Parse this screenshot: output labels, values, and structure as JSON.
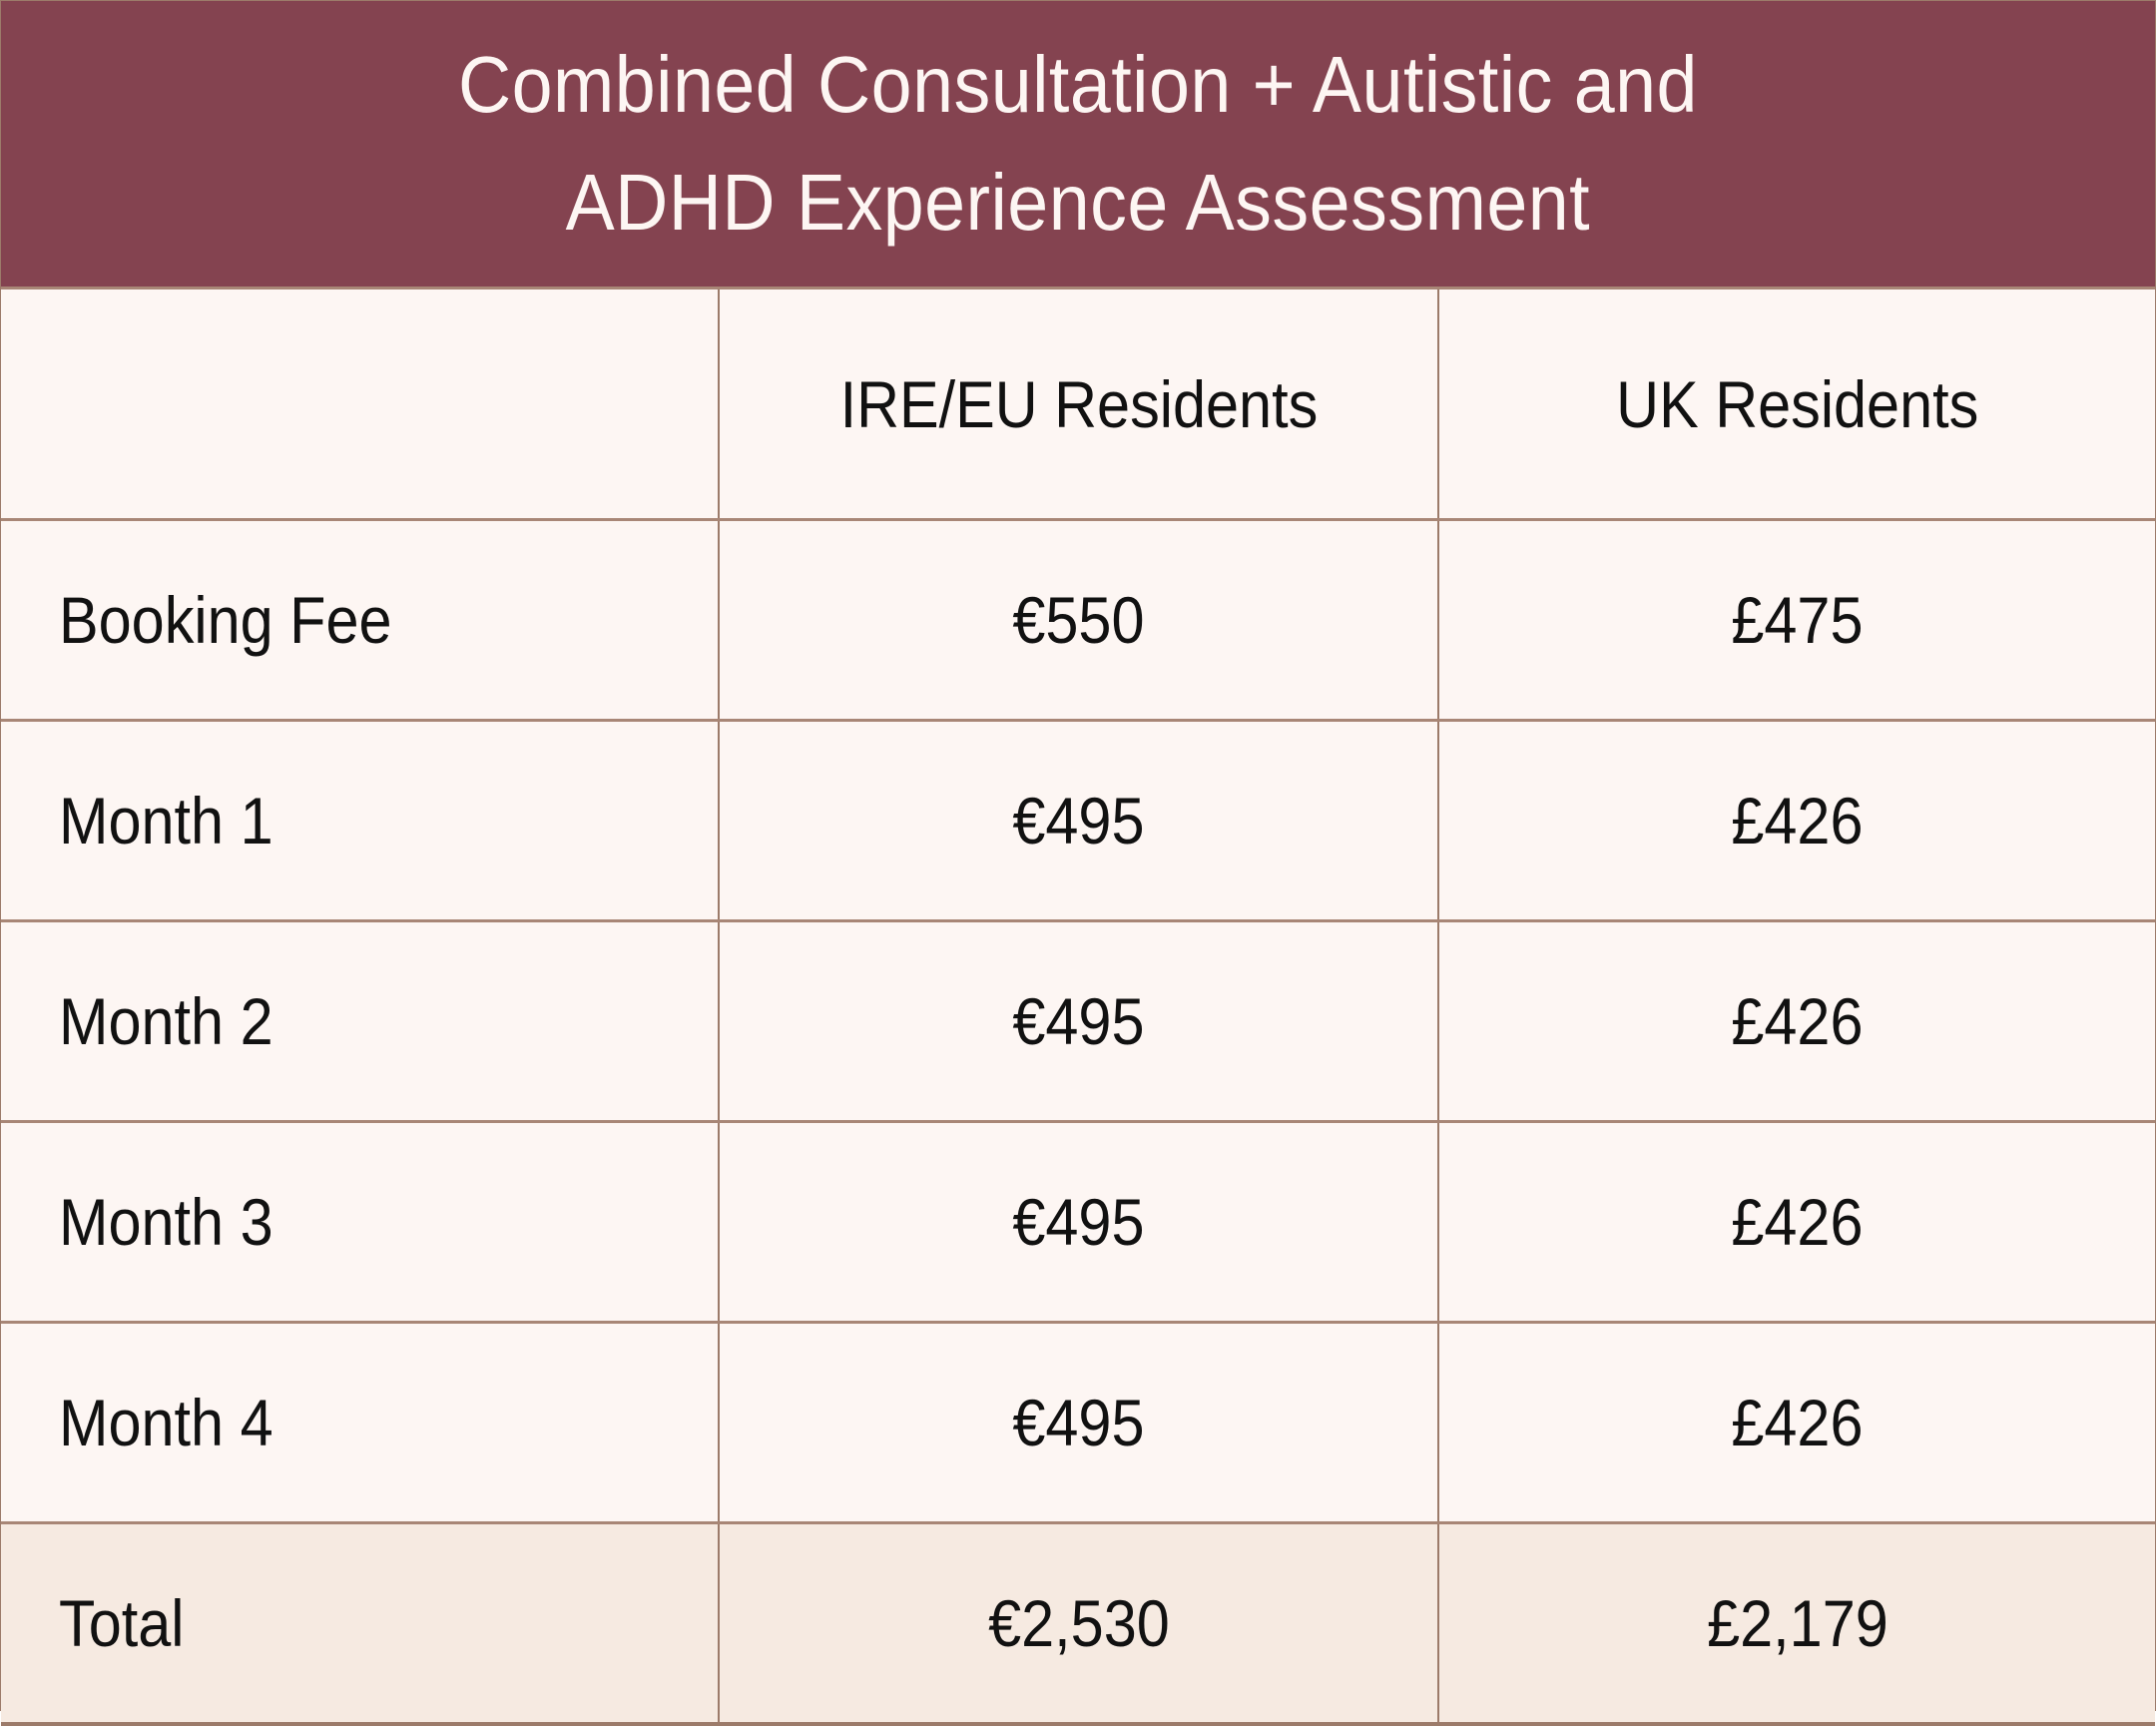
{
  "title": {
    "line1": "Combined Consultation + Autistic and",
    "line2": "ADHD Experience Assessment"
  },
  "colors": {
    "header_bg": "#844350",
    "body_bg": "#fdf6f3",
    "total_bg": "#f6eae1",
    "border": "#9c7b6a"
  },
  "table": {
    "columns": [
      "",
      "IRE/EU Residents",
      "UK Residents"
    ],
    "rows": [
      {
        "label": "Booking Fee",
        "eu": "€550",
        "uk": "£475"
      },
      {
        "label": "Month 1",
        "eu": "€495",
        "uk": "£426"
      },
      {
        "label": "Month 2",
        "eu": "€495",
        "uk": "£426"
      },
      {
        "label": "Month 3",
        "eu": "€495",
        "uk": "£426"
      },
      {
        "label": "Month 4",
        "eu": "€495",
        "uk": "£426"
      }
    ],
    "total": {
      "label": "Total",
      "eu": "€2,530",
      "uk": "£2,179"
    }
  }
}
